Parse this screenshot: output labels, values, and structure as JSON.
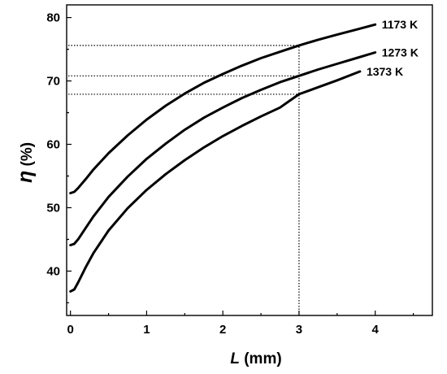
{
  "chart_data": {
    "type": "line",
    "title": "",
    "xlabel": {
      "var": "L",
      "unit": " (mm)"
    },
    "ylabel": {
      "var": "η",
      "unit": " (%)"
    },
    "xlim": [
      -0.05,
      4.75
    ],
    "ylim": [
      33,
      82
    ],
    "x_ticks": [
      0,
      1,
      2,
      3,
      4
    ],
    "x_tick_labels": [
      "0",
      "1",
      "2",
      "3",
      "4"
    ],
    "y_ticks": [
      40,
      50,
      60,
      70,
      80
    ],
    "y_tick_labels": [
      "40",
      "50",
      "60",
      "70",
      "80"
    ],
    "grid": false,
    "series": [
      {
        "name": "1173 K",
        "x": [
          0.0,
          0.05,
          0.1,
          0.2,
          0.3,
          0.5,
          0.75,
          1.0,
          1.25,
          1.5,
          1.75,
          2.0,
          2.25,
          2.5,
          2.75,
          3.0,
          3.25,
          3.5,
          3.75,
          4.0
        ],
        "y": [
          52.3,
          52.5,
          53.1,
          54.5,
          56.0,
          58.6,
          61.4,
          63.9,
          66.1,
          68.0,
          69.7,
          71.1,
          72.4,
          73.6,
          74.6,
          75.6,
          76.5,
          77.3,
          78.1,
          78.9
        ]
      },
      {
        "name": "1273 K",
        "x": [
          0.0,
          0.05,
          0.1,
          0.2,
          0.3,
          0.5,
          0.75,
          1.0,
          1.25,
          1.5,
          1.75,
          2.0,
          2.25,
          2.5,
          2.75,
          3.0,
          3.25,
          3.5,
          3.75,
          4.0
        ],
        "y": [
          44.1,
          44.3,
          45.0,
          46.8,
          48.6,
          51.7,
          54.9,
          57.7,
          60.1,
          62.3,
          64.2,
          65.8,
          67.3,
          68.6,
          69.8,
          70.8,
          71.8,
          72.7,
          73.6,
          74.5
        ]
      },
      {
        "name": "1373 K",
        "x": [
          0.0,
          0.05,
          0.1,
          0.2,
          0.3,
          0.5,
          0.75,
          1.0,
          1.25,
          1.5,
          1.75,
          2.0,
          2.25,
          2.5,
          2.75,
          3.0,
          3.25,
          3.5,
          3.8
        ],
        "y": [
          36.8,
          37.1,
          38.2,
          40.6,
          42.8,
          46.4,
          49.9,
          52.8,
          55.3,
          57.5,
          59.5,
          61.3,
          62.9,
          64.4,
          65.8,
          67.9,
          69.0,
          70.1,
          71.5
        ]
      }
    ],
    "reference_lines": {
      "vertical_x": 3,
      "horizontal_y": [
        75.6,
        70.8,
        67.9
      ]
    },
    "legend": "inline labels at curve ends (right)"
  }
}
